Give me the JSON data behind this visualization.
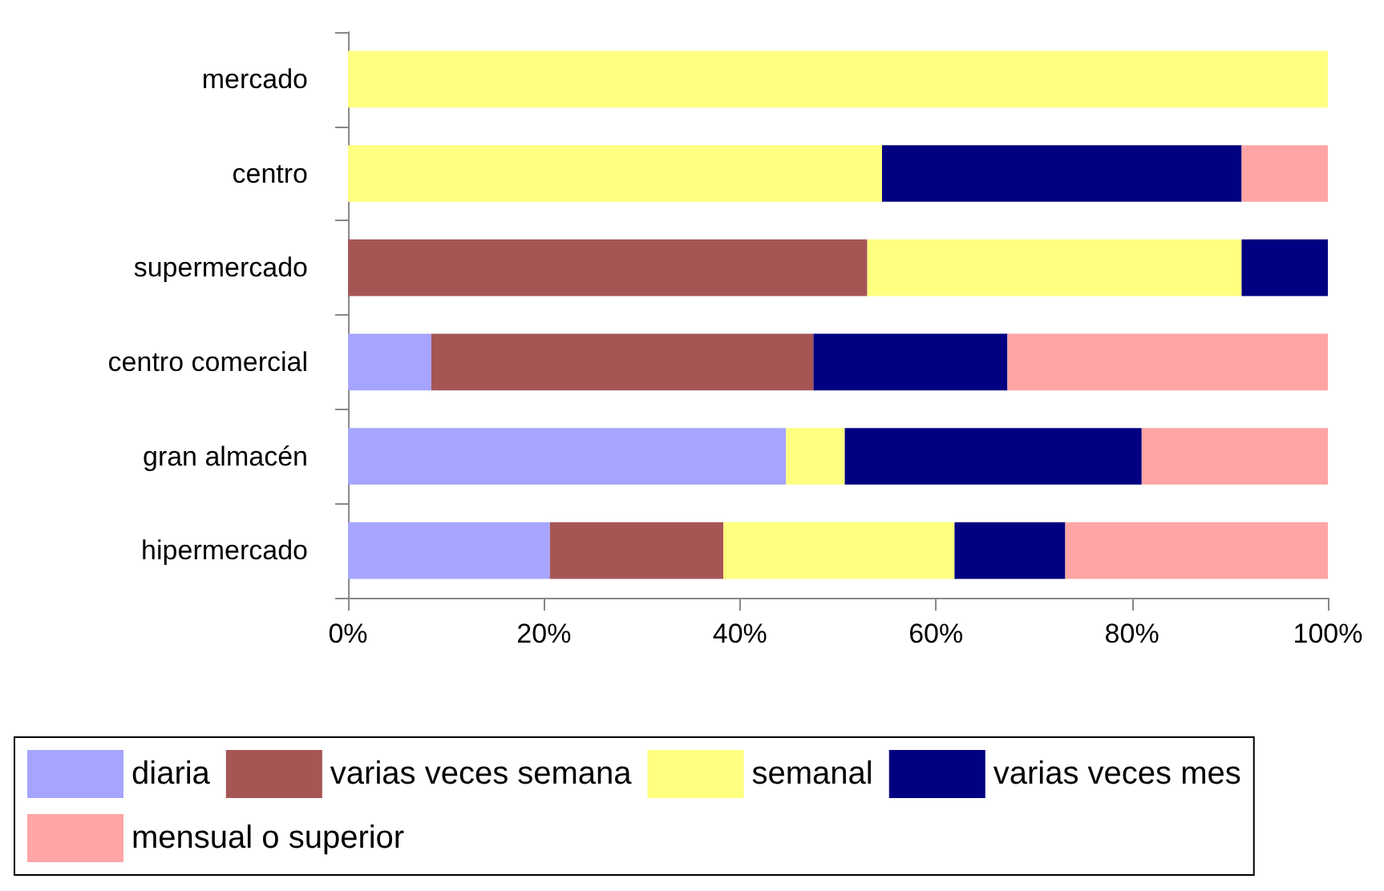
{
  "chart_data": {
    "type": "bar",
    "orientation": "horizontal",
    "stacked": true,
    "categories": [
      "mercado",
      "centro",
      "supermercado",
      "centro comercial",
      "gran almacén",
      "hipermercado"
    ],
    "series": [
      {
        "name": "diaria",
        "color": "#a5a5ff",
        "values": [
          0,
          0,
          0,
          8.5,
          44.7,
          20.6
        ]
      },
      {
        "name": "varias veces semana",
        "color": "#a65555",
        "values": [
          0,
          0,
          53.0,
          39.0,
          0,
          17.7
        ]
      },
      {
        "name": "semanal",
        "color": "#ffff80",
        "values": [
          100,
          54.5,
          38.2,
          0,
          6.0,
          23.6
        ]
      },
      {
        "name": "varias veces mes",
        "color": "#000080",
        "values": [
          0,
          36.7,
          8.8,
          19.8,
          30.3,
          11.3
        ]
      },
      {
        "name": "mensual o superior",
        "color": "#ffa5a5",
        "values": [
          0,
          8.8,
          0,
          32.7,
          19.0,
          26.8
        ]
      }
    ],
    "xlim": [
      0,
      100
    ],
    "xticks": [
      {
        "value": 0,
        "label": "0%"
      },
      {
        "value": 20,
        "label": "20%"
      },
      {
        "value": 40,
        "label": "40%"
      },
      {
        "value": 60,
        "label": "60%"
      },
      {
        "value": 80,
        "label": "80%"
      },
      {
        "value": 100,
        "label": "100%"
      }
    ],
    "grid": false,
    "legend": "bottom"
  }
}
